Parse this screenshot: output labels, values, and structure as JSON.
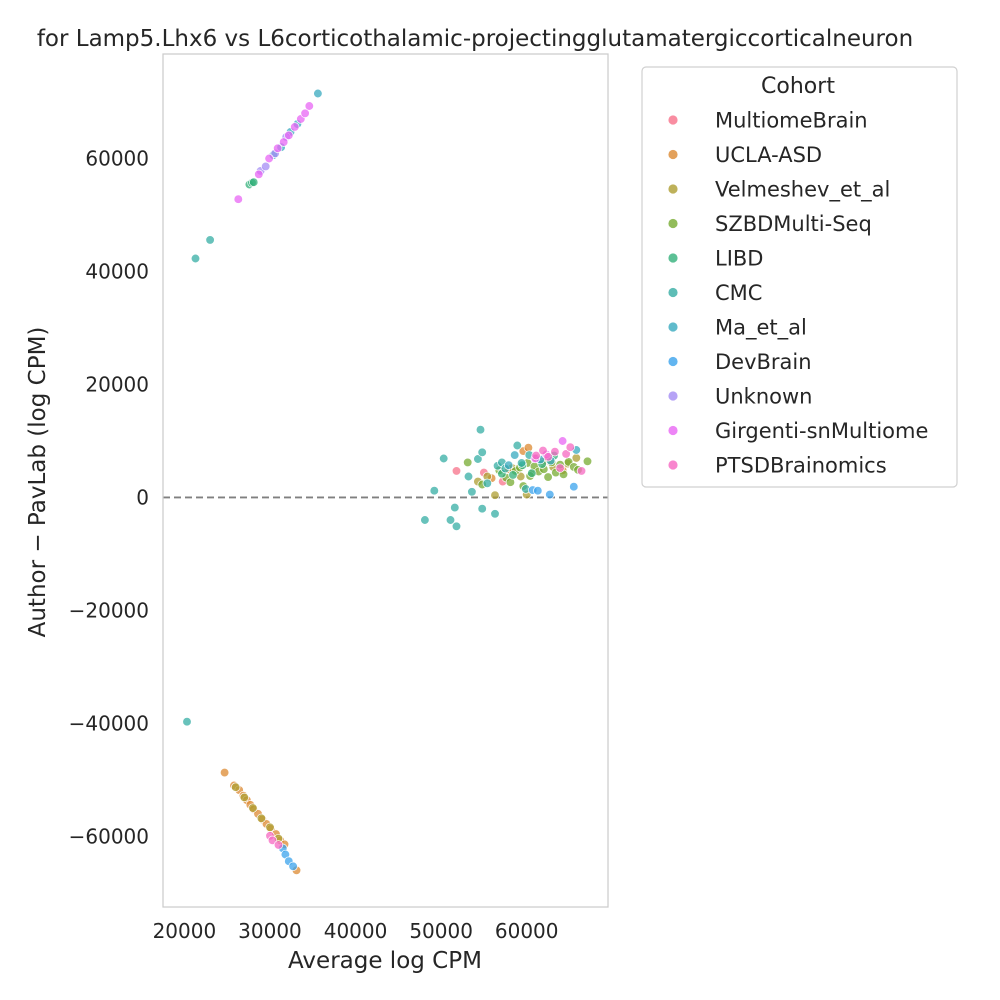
{
  "chart_data": {
    "type": "scatter",
    "title": "for Lamp5.Lhx6 vs L6corticothalamic-projectingglutamatergiccorticalneuron",
    "xlabel": "Average log CPM",
    "ylabel": "Author − PavLab (log CPM)",
    "xlim": [
      17500,
      69500
    ],
    "ylim": [
      -72500,
      78500
    ],
    "xticks": [
      20000,
      30000,
      40000,
      50000,
      60000
    ],
    "yticks": [
      -60000,
      -40000,
      -20000,
      0,
      20000,
      40000,
      60000
    ],
    "xtick_labels": [
      "20000",
      "30000",
      "40000",
      "50000",
      "60000"
    ],
    "ytick_labels": [
      "−60000",
      "−40000",
      "−20000",
      "0",
      "20000",
      "40000",
      "60000"
    ],
    "grid": false,
    "reference_line": {
      "y": 0,
      "style": "dashed",
      "color": "#808080"
    },
    "legend": {
      "title": "Cohort",
      "position": "outside-right"
    },
    "series": [
      {
        "name": "MultiomeBrain",
        "color": "#f77189",
        "points": [
          [
            51800,
            4700
          ],
          [
            55000,
            4400
          ],
          [
            57200,
            2800
          ]
        ]
      },
      {
        "name": "UCLA-ASD",
        "color": "#dc8932",
        "points": [
          [
            24700,
            -48700
          ],
          [
            25800,
            -51000
          ],
          [
            26400,
            -51800
          ],
          [
            26900,
            -52800
          ],
          [
            27300,
            -53600
          ],
          [
            27700,
            -54400
          ],
          [
            28100,
            -55200
          ],
          [
            28600,
            -56000
          ],
          [
            29100,
            -57000
          ],
          [
            29600,
            -57800
          ],
          [
            30100,
            -58700
          ],
          [
            30700,
            -59600
          ],
          [
            31200,
            -60700
          ],
          [
            31700,
            -61400
          ],
          [
            33100,
            -66000
          ],
          [
            55900,
            3400
          ],
          [
            57900,
            5000
          ],
          [
            59600,
            8200
          ],
          [
            60200,
            8800
          ],
          [
            61100,
            7000
          ],
          [
            62400,
            6500
          ],
          [
            64200,
            4800
          ]
        ]
      },
      {
        "name": "Velmeshev_et_al",
        "color": "#ae9d31",
        "points": [
          [
            26000,
            -51300
          ],
          [
            27000,
            -53100
          ],
          [
            28000,
            -55000
          ],
          [
            29000,
            -56800
          ],
          [
            30000,
            -58400
          ],
          [
            31000,
            -60400
          ],
          [
            54300,
            2800
          ],
          [
            55400,
            3700
          ],
          [
            56300,
            400
          ],
          [
            58300,
            5200
          ],
          [
            59300,
            3700
          ],
          [
            60000,
            500
          ],
          [
            60800,
            4500
          ],
          [
            61900,
            6300
          ],
          [
            63100,
            5400
          ],
          [
            64800,
            6000
          ],
          [
            65800,
            7000
          ]
        ]
      },
      {
        "name": "SZBDMulti-Seq",
        "color": "#77ab31",
        "points": [
          [
            53100,
            6200
          ],
          [
            54800,
            2300
          ],
          [
            56800,
            4800
          ],
          [
            57600,
            3500
          ],
          [
            58100,
            2700
          ],
          [
            58700,
            4700
          ],
          [
            59200,
            5300
          ],
          [
            59600,
            2000
          ],
          [
            60100,
            6100
          ],
          [
            60400,
            3800
          ],
          [
            60900,
            5500
          ],
          [
            61400,
            4600
          ],
          [
            62000,
            5000
          ],
          [
            62500,
            3600
          ],
          [
            62900,
            6200
          ],
          [
            63400,
            4400
          ],
          [
            63900,
            5800
          ],
          [
            64300,
            4100
          ],
          [
            64900,
            6300
          ],
          [
            65500,
            5400
          ],
          [
            66000,
            4900
          ],
          [
            67100,
            6400
          ]
        ]
      },
      {
        "name": "LIBD",
        "color": "#33b07a",
        "points": [
          [
            27600,
            55400
          ],
          [
            27900,
            55700
          ],
          [
            28100,
            55800
          ],
          [
            57100,
            4200
          ],
          [
            58400,
            4000
          ],
          [
            59500,
            5700
          ],
          [
            60600,
            4300
          ],
          [
            61800,
            5900
          ],
          [
            63200,
            7400
          ]
        ]
      },
      {
        "name": "CMC",
        "color": "#36ada4",
        "points": [
          [
            20300,
            -39700
          ],
          [
            21300,
            42300
          ],
          [
            23000,
            45600
          ],
          [
            48100,
            -4000
          ],
          [
            49200,
            1200
          ],
          [
            50300,
            6900
          ],
          [
            51100,
            -4000
          ],
          [
            51600,
            -1800
          ],
          [
            51800,
            -5100
          ],
          [
            53200,
            3700
          ],
          [
            53600,
            1000
          ],
          [
            54300,
            6800
          ],
          [
            54600,
            12000
          ],
          [
            54800,
            8000
          ],
          [
            54800,
            -2000
          ],
          [
            55400,
            2500
          ],
          [
            56300,
            -2900
          ],
          [
            56600,
            5600
          ],
          [
            57100,
            6200
          ],
          [
            57500,
            5100
          ],
          [
            58900,
            9200
          ],
          [
            59400,
            6100
          ],
          [
            60300,
            7500
          ],
          [
            59900,
            1500
          ]
        ]
      },
      {
        "name": "Ma_et_al",
        "color": "#38aabf",
        "points": [
          [
            30400,
            60600
          ],
          [
            31300,
            62000
          ],
          [
            32400,
            64700
          ],
          [
            33200,
            66100
          ],
          [
            35600,
            71500
          ],
          [
            57900,
            5700
          ],
          [
            58600,
            7500
          ],
          [
            61600,
            6700
          ],
          [
            62800,
            6500
          ],
          [
            65800,
            8400
          ]
        ]
      },
      {
        "name": "DevBrain",
        "color": "#3ba3ec",
        "points": [
          [
            31500,
            -62100
          ],
          [
            31800,
            -63200
          ],
          [
            32200,
            -64400
          ],
          [
            32700,
            -65300
          ],
          [
            60700,
            1300
          ],
          [
            61300,
            1200
          ],
          [
            62700,
            500
          ],
          [
            65500,
            1900
          ]
        ]
      },
      {
        "name": "Unknown",
        "color": "#a48cf4",
        "points": [
          [
            28900,
            57800
          ],
          [
            29500,
            58600
          ],
          [
            30600,
            60900
          ],
          [
            31900,
            63800
          ]
        ]
      },
      {
        "name": "Girgenti-snMultiome",
        "color": "#e866f4",
        "points": [
          [
            26300,
            52800
          ],
          [
            28700,
            57200
          ],
          [
            29900,
            60000
          ],
          [
            30900,
            61800
          ],
          [
            31600,
            62900
          ],
          [
            32200,
            64100
          ],
          [
            32900,
            65600
          ],
          [
            33600,
            67000
          ],
          [
            34100,
            68000
          ],
          [
            34600,
            69300
          ],
          [
            61000,
            6900
          ],
          [
            62300,
            7600
          ],
          [
            64200,
            10000
          ]
        ]
      },
      {
        "name": "PTSDBrainomics",
        "color": "#f668c2",
        "points": [
          [
            30000,
            -59900
          ],
          [
            30300,
            -60700
          ],
          [
            31000,
            -61500
          ],
          [
            61100,
            7400
          ],
          [
            61900,
            8300
          ],
          [
            62500,
            7200
          ],
          [
            63300,
            8100
          ],
          [
            63900,
            5200
          ],
          [
            64600,
            7700
          ],
          [
            65100,
            8900
          ],
          [
            66400,
            4700
          ]
        ]
      }
    ]
  }
}
